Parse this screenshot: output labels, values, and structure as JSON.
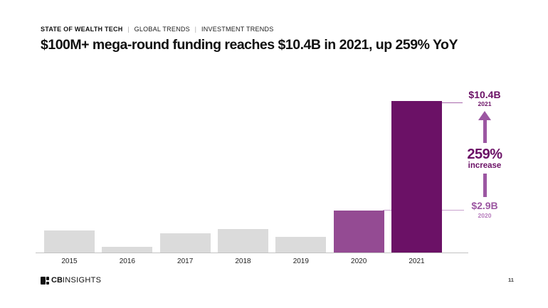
{
  "header": {
    "eyebrow": [
      "STATE OF WEALTH TECH",
      "GLOBAL TRENDS",
      "INVESTMENT TRENDS"
    ],
    "eyebrow_separator": "|",
    "title": "$100M+ mega-round funding reaches $10.4B in 2021, up 259% YoY"
  },
  "chart_data": {
    "type": "bar",
    "title": "$100M+ mega-round funding reaches $10.4B in 2021, up 259% YoY",
    "categories": [
      "2015",
      "2016",
      "2017",
      "2018",
      "2019",
      "2020",
      "2021"
    ],
    "values": [
      1.5,
      0.4,
      1.3,
      1.6,
      1.1,
      2.9,
      10.4
    ],
    "value_unit": "USD billions",
    "labeled_points": [
      {
        "category": "2020",
        "label": "$2.9B"
      },
      {
        "category": "2021",
        "label": "$10.4B"
      }
    ],
    "xlabel": "",
    "ylabel": "",
    "ylim": [
      0,
      10.4
    ],
    "grid": false,
    "legend": false,
    "bar_colors": {
      "default": "#DBDBDB",
      "2020": "#944B93",
      "2021": "#6B1166"
    }
  },
  "annotation": {
    "top_value": "$10.4B",
    "top_year": "2021",
    "pct": "259%",
    "pct_label": "increase",
    "bottom_value": "$2.9B",
    "bottom_year": "2020"
  },
  "footer": {
    "logo_bold": "CB",
    "logo_rest": "INSIGHTS",
    "page_number": "11"
  },
  "icons": {
    "up_arrow": "up-arrow-icon",
    "logo_mark": "cbinsights-logo-mark"
  },
  "colors": {
    "dark_purple": "#6B1166",
    "medium_purple": "#944B93",
    "arrow_purple": "#9C57A2",
    "top_ref_line": "#A868AC",
    "bottom_ref_line": "#C9A3CE",
    "light_purple_text": "#B67BBC",
    "gray_bar": "#DBDBDB",
    "axis_line": "#C2C2C2"
  }
}
